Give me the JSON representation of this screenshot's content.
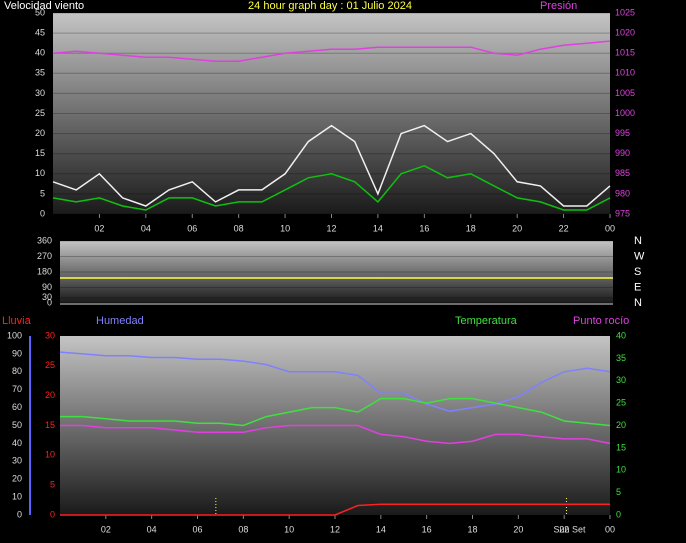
{
  "chart_data": [
    {
      "type": "line",
      "title": "24 hour graph day : 01 Julio 2024",
      "x": [
        0,
        1,
        2,
        3,
        4,
        5,
        6,
        7,
        8,
        9,
        10,
        11,
        12,
        13,
        14,
        15,
        16,
        17,
        18,
        19,
        20,
        21,
        22,
        23,
        24
      ],
      "xlim": [
        0,
        24
      ],
      "xticks": [
        {
          "value": 2,
          "label": "02"
        },
        {
          "value": 4,
          "label": "04"
        },
        {
          "value": 6,
          "label": "06"
        },
        {
          "value": 8,
          "label": "08"
        },
        10,
        12,
        14,
        16,
        18,
        20,
        22,
        {
          "value": 24,
          "label": "00"
        }
      ],
      "ylim": [
        0,
        50
      ],
      "yticks": [
        0,
        5,
        10,
        15,
        20,
        25,
        30,
        35,
        40,
        45,
        50
      ],
      "y2lim": [
        975,
        1025
      ],
      "y2ticks": [
        975,
        980,
        985,
        990,
        995,
        1000,
        1005,
        1010,
        1015,
        1020,
        1025
      ],
      "grid": true,
      "series": [
        {
          "color": "#f0f0f0",
          "values": [
            8,
            6,
            10,
            4,
            2,
            6,
            8,
            3,
            6,
            6,
            10,
            18,
            22,
            18,
            5,
            20,
            22,
            18,
            20,
            15,
            8,
            7,
            2,
            2,
            7
          ]
        },
        {
          "name": "Velocidad viento",
          "color": "#10c010",
          "values": [
            4,
            3,
            4,
            2,
            1,
            4,
            4,
            2,
            3,
            3,
            6,
            9,
            10,
            8,
            3,
            10,
            12,
            9,
            10,
            7,
            4,
            3,
            1,
            1,
            4
          ]
        },
        {
          "name": "Presión",
          "color": "#e040e0",
          "axis": "y2",
          "values": [
            1015,
            1015.5,
            1015,
            1014.5,
            1014,
            1014,
            1013.5,
            1013,
            1013,
            1014,
            1015,
            1015.5,
            1016,
            1016,
            1016.5,
            1016.5,
            1016.5,
            1016.5,
            1016.5,
            1015,
            1014.5,
            1016,
            1017,
            1017.5,
            1018
          ]
        }
      ]
    },
    {
      "type": "line",
      "x": [
        0,
        1,
        2,
        3,
        4,
        5,
        6,
        7,
        8,
        9,
        10,
        11,
        12,
        13,
        14,
        15,
        16,
        17,
        18,
        19,
        20,
        21,
        22,
        23,
        24
      ],
      "xlim": [
        0,
        24
      ],
      "ylim": [
        0,
        360
      ],
      "yticks": [
        0,
        30,
        90,
        180,
        270,
        360
      ],
      "y2lim": [
        0,
        360
      ],
      "y2ticks": [
        {
          "value": 360,
          "label": "N"
        },
        {
          "value": 270,
          "label": "W"
        },
        {
          "value": 180,
          "label": "S"
        },
        {
          "value": 90,
          "label": "E"
        },
        {
          "value": 0,
          "label": "N"
        }
      ],
      "grid": true,
      "series": [
        {
          "color": "#ffff40",
          "values": [
            145,
            145,
            145,
            145,
            145,
            145,
            145,
            145,
            145,
            145,
            145,
            145,
            145,
            145,
            145,
            145,
            145,
            145,
            145,
            145,
            145,
            145,
            145,
            145,
            145
          ]
        }
      ]
    },
    {
      "type": "line",
      "x": [
        0,
        1,
        2,
        3,
        4,
        5,
        6,
        7,
        8,
        9,
        10,
        11,
        12,
        13,
        14,
        15,
        16,
        17,
        18,
        19,
        20,
        21,
        22,
        23,
        24
      ],
      "xlim": [
        0,
        24
      ],
      "xticks": [
        {
          "value": 2,
          "label": "02"
        },
        {
          "value": 4,
          "label": "04"
        },
        {
          "value": 6,
          "label": "06"
        },
        {
          "value": 8,
          "label": "08"
        },
        10,
        12,
        14,
        16,
        18,
        20,
        22,
        {
          "value": 24,
          "label": "00"
        }
      ],
      "ylim": [
        0,
        30
      ],
      "yticks": [
        0,
        5,
        10,
        15,
        20,
        25,
        30
      ],
      "y2lim": [
        0,
        40
      ],
      "y2ticks": [
        0,
        5,
        10,
        15,
        20,
        25,
        30,
        35,
        40
      ],
      "y3lim": [
        0,
        100
      ],
      "y3ticks": [
        0,
        10,
        20,
        30,
        40,
        50,
        60,
        70,
        80,
        90,
        100
      ],
      "sun_markers": [
        6.8,
        22.1
      ],
      "annotation": "Sun Set",
      "series": [
        {
          "name": "Lluvia",
          "color": "#ff2020",
          "values": [
            0,
            0,
            0,
            0,
            0,
            0,
            0,
            0,
            0,
            0,
            0,
            0,
            0,
            1.6,
            1.8,
            1.8,
            1.8,
            1.8,
            1.8,
            1.8,
            1.8,
            1.8,
            1.8,
            1.8,
            1.8
          ]
        },
        {
          "name": "Humedad",
          "color": "#8080ff",
          "axis": "y3",
          "values": [
            91,
            90,
            89,
            89,
            88,
            88,
            87,
            87,
            86,
            84,
            80,
            80,
            80,
            78,
            68,
            68,
            62,
            58,
            60,
            62,
            66,
            74,
            80,
            82,
            80
          ]
        },
        {
          "name": "Temperatura",
          "color": "#40e040",
          "axis": "y2",
          "values": [
            22,
            22,
            21.5,
            21,
            21,
            21,
            20.5,
            20.5,
            20,
            22,
            23,
            24,
            24,
            23,
            26,
            26,
            25,
            26,
            26,
            25,
            24,
            23,
            21,
            20.5,
            20
          ]
        },
        {
          "name": "Punto rocío",
          "color": "#e040e0",
          "axis": "y2",
          "values": [
            20,
            20,
            19.5,
            19.5,
            19.5,
            19,
            18.5,
            18.5,
            18.5,
            19.5,
            20,
            20,
            20,
            20,
            18,
            17.5,
            16.5,
            16,
            16.5,
            18,
            18,
            17.5,
            17,
            17,
            16
          ]
        }
      ]
    }
  ]
}
